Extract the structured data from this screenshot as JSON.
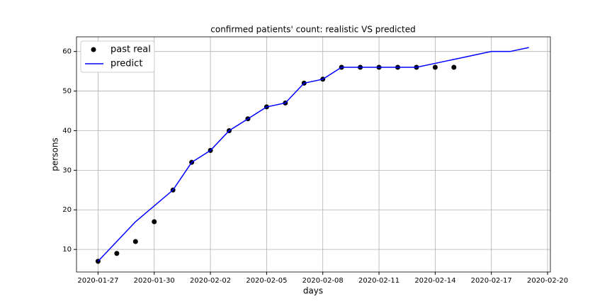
{
  "chart_data": {
    "type": "line",
    "title": "confirmed patients' count: realistic VS predicted",
    "x_label": "days",
    "y_label": "persons",
    "series": [
      {
        "name": "past real",
        "type": "scatter",
        "color": "#000000",
        "x": [
          "2020-01-27",
          "2020-01-28",
          "2020-01-29",
          "2020-01-30",
          "2020-01-31",
          "2020-02-01",
          "2020-02-02",
          "2020-02-03",
          "2020-02-04",
          "2020-02-05",
          "2020-02-06",
          "2020-02-07",
          "2020-02-08",
          "2020-02-09",
          "2020-02-10",
          "2020-02-11",
          "2020-02-12",
          "2020-02-13",
          "2020-02-14",
          "2020-02-15"
        ],
        "values": [
          7,
          9,
          12,
          17,
          25,
          32,
          35,
          40,
          43,
          46,
          47,
          52,
          53,
          56,
          56,
          56,
          56,
          56,
          56,
          56
        ]
      },
      {
        "name": "predict",
        "type": "line",
        "color": "#0000ff",
        "x": [
          "2020-01-27",
          "2020-01-29",
          "2020-01-31",
          "2020-02-01",
          "2020-02-02",
          "2020-02-03",
          "2020-02-04",
          "2020-02-05",
          "2020-02-06",
          "2020-02-07",
          "2020-02-08",
          "2020-02-09",
          "2020-02-10",
          "2020-02-11",
          "2020-02-12",
          "2020-02-13",
          "2020-02-14",
          "2020-02-15",
          "2020-02-16",
          "2020-02-17",
          "2020-02-18",
          "2020-02-19"
        ],
        "values": [
          7,
          17,
          25,
          32,
          35,
          40,
          43,
          46,
          47,
          52,
          53,
          56,
          56,
          56,
          56,
          56,
          57,
          58,
          59,
          60,
          60,
          61
        ]
      }
    ],
    "xlim": [
      "2020-01-25T20:24",
      "2020-02-20T03:36"
    ],
    "xticks": [
      "2020-01-27",
      "2020-01-30",
      "2020-02-02",
      "2020-02-05",
      "2020-02-08",
      "2020-02-11",
      "2020-02-14",
      "2020-02-17",
      "2020-02-20"
    ],
    "ylim": [
      4.3,
      63.7
    ],
    "yticks": [
      10,
      20,
      30,
      40,
      50,
      60
    ],
    "grid": true,
    "legend": "upper-left"
  }
}
